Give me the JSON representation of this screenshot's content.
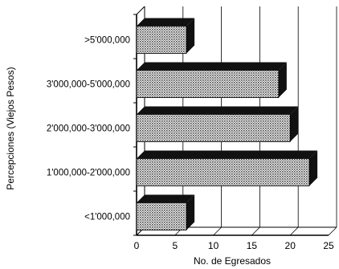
{
  "chart_data": {
    "type": "bar",
    "orientation": "horizontal",
    "style": "3d",
    "categories": [
      ">5'000,000",
      "3'000,000-5'000,000",
      "2'000,000-3'000,000",
      "1'000,000-2'000,000",
      "<1'000,000"
    ],
    "values": [
      6.5,
      18.5,
      20,
      22.5,
      6.5
    ],
    "xlabel": "No. de Egresados",
    "ylabel": "Percepciones (Viejos Pesos)",
    "xlim": [
      0,
      25
    ],
    "xticks": [
      "0",
      "5",
      "10",
      "15",
      "20",
      "25"
    ],
    "grid": true,
    "colors": {
      "bar_face": "#bdbdbd",
      "bar_shadow": "#111111",
      "grid": "#000000"
    }
  }
}
